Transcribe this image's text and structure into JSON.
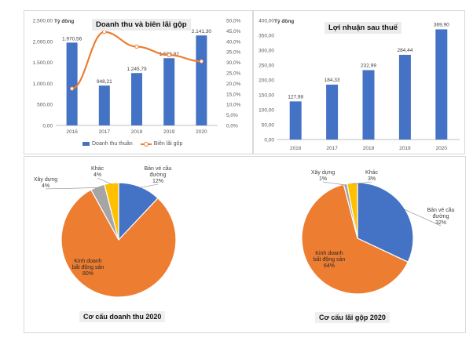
{
  "chart_data": [
    {
      "type": "bar",
      "title": "Doanh thu và biên lãi gộp",
      "ylabel": "Tỷ đồng",
      "categories": [
        "2016",
        "2017",
        "2018",
        "2019",
        "2020"
      ],
      "ylim": [
        0,
        2500
      ],
      "y2lim": [
        0,
        50
      ],
      "y_ticks": [
        "0,00",
        "500,00",
        "1.000,00",
        "1.500,00",
        "2.000,00",
        "2.500,00"
      ],
      "y2_ticks": [
        "0,0%",
        "5,0%",
        "10,0%",
        "15,0%",
        "20,0%",
        "25,0%",
        "30,0%",
        "35,0%",
        "40,0%",
        "45,0%",
        "50,0%"
      ],
      "series": [
        {
          "name": "Doanh thu thuần",
          "type": "bar",
          "values": [
            1970.56,
            948.21,
            1245.79,
            1599.82,
            2141.3
          ],
          "labels": [
            "1.970,56",
            "948,21",
            "1.245,79",
            "1.599,82",
            "2.141,30"
          ],
          "color": "#4472c4"
        },
        {
          "name": "Biên lãi gộp",
          "type": "line",
          "axis": "secondary",
          "values": [
            17.5,
            44.5,
            37.5,
            33.5,
            30.5
          ],
          "color": "#ed7d31"
        }
      ],
      "legend": "bottom"
    },
    {
      "type": "bar",
      "title": "Lợi nhuận sau thuế",
      "ylabel": "Tỷ đồng",
      "categories": [
        "2016",
        "2017",
        "2018",
        "2019",
        "2020"
      ],
      "ylim": [
        0,
        400
      ],
      "y_ticks": [
        "0,00",
        "50,00",
        "100,00",
        "150,00",
        "200,00",
        "250,00",
        "300,00",
        "350,00",
        "400,00"
      ],
      "series": [
        {
          "values": [
            127.98,
            184.33,
            232.99,
            284.44,
            369.9
          ],
          "labels": [
            "127,98",
            "184,33",
            "232,99",
            "284,44",
            "369,90"
          ],
          "color": "#4472c4"
        }
      ]
    },
    {
      "type": "pie",
      "title": "Cơ cấu doanh thu 2020",
      "slices": [
        {
          "label": [
            "Bản vé cầu",
            "đường"
          ],
          "pct_label": "12%",
          "value": 12,
          "color": "#4472c4"
        },
        {
          "label": [
            "Kinh doanh",
            "bất động sản"
          ],
          "pct_label": "80%",
          "value": 80,
          "color": "#ed7d31"
        },
        {
          "label": [
            "Xây dựng"
          ],
          "pct_label": "4%",
          "value": 4,
          "color": "#a5a5a5"
        },
        {
          "label": [
            "Khác"
          ],
          "pct_label": "4%",
          "value": 4,
          "color": "#ffc000"
        }
      ]
    },
    {
      "type": "pie",
      "title": "Cơ cấu lãi gộp 2020",
      "slices": [
        {
          "label": [
            "Bản vé cầu",
            "đường"
          ],
          "pct_label": "32%",
          "value": 32,
          "color": "#4472c4"
        },
        {
          "label": [
            "Kinh doanh",
            "bất động sản"
          ],
          "pct_label": "64%",
          "value": 64,
          "color": "#ed7d31"
        },
        {
          "label": [
            "Xây dựng"
          ],
          "pct_label": "1%",
          "value": 1,
          "color": "#a5a5a5"
        },
        {
          "label": [
            "Khác"
          ],
          "pct_label": "3%",
          "value": 3,
          "color": "#ffc000"
        }
      ]
    }
  ]
}
